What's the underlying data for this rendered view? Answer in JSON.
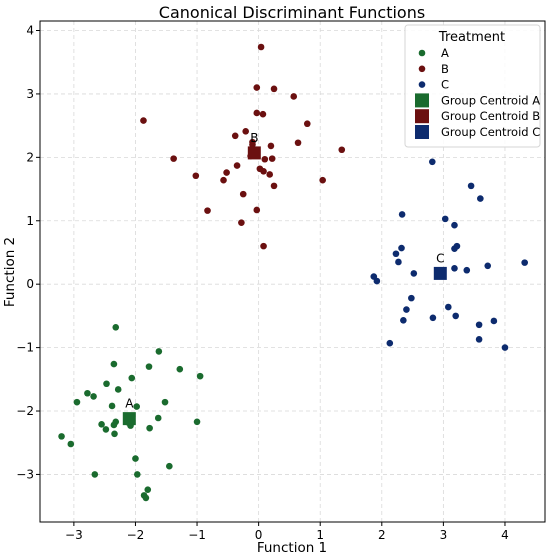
{
  "chart_data": {
    "type": "scatter",
    "title": "Canonical Discriminant Functions",
    "xlabel": "Function 1",
    "ylabel": "Function 2",
    "xlim": [
      -3.55,
      4.65
    ],
    "ylim": [
      -3.75,
      4.15
    ],
    "xticks": [
      -3,
      -2,
      -1,
      0,
      1,
      2,
      3,
      4
    ],
    "xtick_labels": [
      "−3",
      "−2",
      "−1",
      "0",
      "1",
      "2",
      "3",
      "4"
    ],
    "yticks": [
      -3,
      -2,
      -1,
      0,
      1,
      2,
      3,
      4
    ],
    "ytick_labels": [
      "−3",
      "−2",
      "−1",
      "0",
      "1",
      "2",
      "3",
      "4"
    ],
    "grid": true,
    "legend_title": "Treatment",
    "legend_position": "top-right",
    "series": [
      {
        "name": "A",
        "color": "#1a6b2e",
        "points": [
          [
            -2.32,
            -0.68
          ],
          [
            -2.95,
            -1.86
          ],
          [
            -2.78,
            -1.72
          ],
          [
            -2.68,
            -1.77
          ],
          [
            -2.47,
            -1.57
          ],
          [
            -2.35,
            -1.26
          ],
          [
            -2.38,
            -1.92
          ],
          [
            -2.32,
            -2.17
          ],
          [
            -2.55,
            -2.21
          ],
          [
            -2.48,
            -2.29
          ],
          [
            -2.34,
            -2.36
          ],
          [
            -2.28,
            -1.66
          ],
          [
            -2.08,
            -2.23
          ],
          [
            -2.12,
            -2.18
          ],
          [
            -2.06,
            -1.48
          ],
          [
            -1.98,
            -1.93
          ],
          [
            -1.78,
            -1.3
          ],
          [
            -1.62,
            -1.06
          ],
          [
            -1.63,
            -2.11
          ],
          [
            -1.52,
            -1.86
          ],
          [
            -1.77,
            -2.27
          ],
          [
            -1.45,
            -2.87
          ],
          [
            -1.28,
            -1.34
          ],
          [
            -0.95,
            -1.45
          ],
          [
            -1.0,
            -2.17
          ],
          [
            -2.0,
            -2.75
          ],
          [
            -1.97,
            -3.0
          ],
          [
            -1.8,
            -3.24
          ],
          [
            -1.86,
            -3.33
          ],
          [
            -1.83,
            -3.37
          ],
          [
            -2.66,
            -3.0
          ],
          [
            -3.05,
            -2.52
          ],
          [
            -3.2,
            -2.4
          ],
          [
            -2.35,
            -2.22
          ]
        ]
      },
      {
        "name": "B",
        "color": "#6b1010",
        "points": [
          [
            0.04,
            3.74
          ],
          [
            -0.03,
            3.1
          ],
          [
            0.25,
            3.08
          ],
          [
            0.57,
            2.96
          ],
          [
            -0.03,
            2.7
          ],
          [
            0.07,
            2.68
          ],
          [
            0.79,
            2.53
          ],
          [
            -0.21,
            2.41
          ],
          [
            -0.38,
            2.34
          ],
          [
            -0.1,
            2.24
          ],
          [
            0.2,
            2.18
          ],
          [
            0.64,
            2.23
          ],
          [
            1.35,
            2.12
          ],
          [
            -0.13,
            2.02
          ],
          [
            0.1,
            1.97
          ],
          [
            0.22,
            1.98
          ],
          [
            -0.35,
            1.87
          ],
          [
            0.02,
            1.82
          ],
          [
            0.08,
            1.78
          ],
          [
            -0.52,
            1.76
          ],
          [
            0.18,
            1.73
          ],
          [
            -0.57,
            1.64
          ],
          [
            0.25,
            1.55
          ],
          [
            -1.02,
            1.71
          ],
          [
            -0.83,
            1.16
          ],
          [
            -0.25,
            1.42
          ],
          [
            -0.03,
            1.17
          ],
          [
            -0.28,
            0.97
          ],
          [
            0.08,
            0.6
          ],
          [
            1.04,
            1.64
          ],
          [
            -1.38,
            1.98
          ],
          [
            -1.87,
            2.58
          ],
          [
            -0.1,
            2.2
          ]
        ]
      },
      {
        "name": "C",
        "color": "#0d2b6e",
        "points": [
          [
            2.82,
            1.93
          ],
          [
            3.45,
            1.55
          ],
          [
            3.6,
            1.35
          ],
          [
            2.33,
            1.1
          ],
          [
            3.03,
            1.03
          ],
          [
            3.18,
            0.93
          ],
          [
            2.23,
            0.48
          ],
          [
            2.32,
            0.57
          ],
          [
            3.18,
            0.56
          ],
          [
            3.22,
            0.6
          ],
          [
            2.27,
            0.35
          ],
          [
            3.18,
            0.25
          ],
          [
            3.38,
            0.22
          ],
          [
            3.72,
            0.29
          ],
          [
            4.32,
            0.34
          ],
          [
            2.52,
            0.17
          ],
          [
            1.87,
            0.12
          ],
          [
            1.92,
            0.05
          ],
          [
            2.48,
            -0.22
          ],
          [
            2.4,
            -0.4
          ],
          [
            3.08,
            -0.36
          ],
          [
            2.35,
            -0.57
          ],
          [
            2.83,
            -0.53
          ],
          [
            3.2,
            -0.5
          ],
          [
            3.58,
            -0.64
          ],
          [
            3.82,
            -0.58
          ],
          [
            3.58,
            -0.87
          ],
          [
            2.13,
            -0.93
          ],
          [
            4.0,
            -1.0
          ]
        ]
      }
    ],
    "centroids": [
      {
        "name": "Group Centroid A",
        "label": "A",
        "color": "#1a6b2e",
        "x": -2.1,
        "y": -2.12
      },
      {
        "name": "Group Centroid B",
        "label": "B",
        "color": "#6b1010",
        "x": -0.07,
        "y": 2.07
      },
      {
        "name": "Group Centroid C",
        "label": "C",
        "color": "#0d2b6e",
        "x": 2.95,
        "y": 0.17
      }
    ]
  }
}
